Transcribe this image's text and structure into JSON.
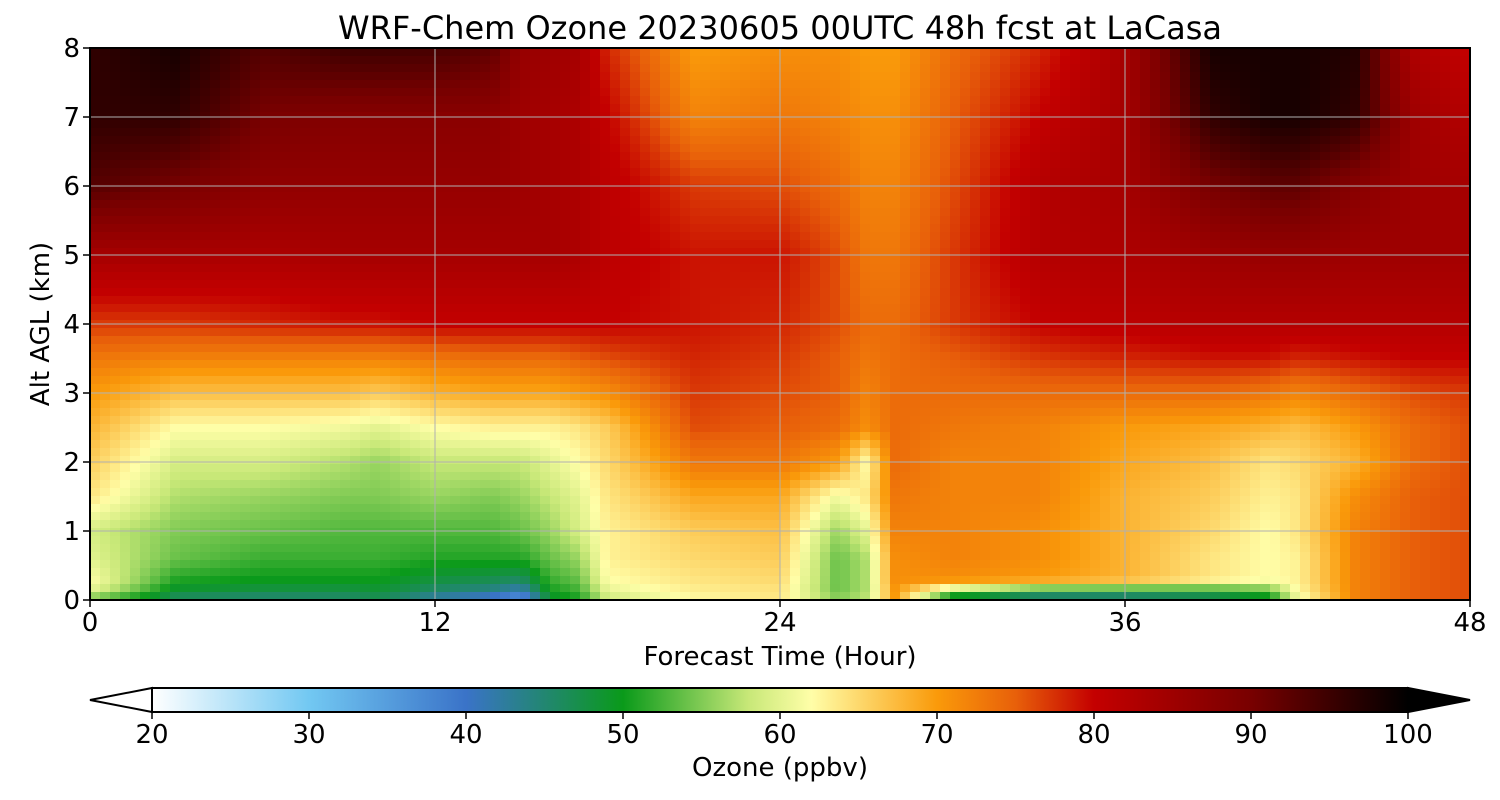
{
  "chart_data": {
    "type": "heatmap",
    "title": "WRF-Chem Ozone  20230605 00UTC 48h fcst at LaCasa",
    "xlabel": "Forecast Time (Hour)",
    "ylabel": "Alt AGL (km)",
    "xlim": [
      0,
      48
    ],
    "ylim": [
      0,
      8
    ],
    "x_ticks": [
      "0",
      "12",
      "24",
      "36",
      "48"
    ],
    "y_ticks": [
      "0",
      "1",
      "2",
      "3",
      "4",
      "5",
      "6",
      "7",
      "8"
    ],
    "grid": true,
    "colorbar": {
      "label": "Ozone  (ppbv)",
      "min": 20,
      "max": 100,
      "ticks": [
        "20",
        "30",
        "40",
        "50",
        "60",
        "70",
        "80",
        "90",
        "100"
      ],
      "extend": "both",
      "colors": [
        [
          20,
          "#ffffff"
        ],
        [
          30,
          "#72c8f2"
        ],
        [
          40,
          "#3a73c8"
        ],
        [
          50,
          "#0a9a1a"
        ],
        [
          58,
          "#c8e878"
        ],
        [
          62,
          "#fffea8"
        ],
        [
          70,
          "#fa9a0a"
        ],
        [
          75,
          "#e8600a"
        ],
        [
          80,
          "#c40000"
        ],
        [
          90,
          "#780000"
        ],
        [
          100,
          "#000000"
        ]
      ]
    },
    "x_hours": [
      0,
      3,
      6,
      9,
      10,
      12,
      14,
      15,
      16,
      17,
      18,
      21,
      24,
      26,
      27,
      28,
      30,
      33,
      36,
      39,
      41,
      42,
      44,
      46,
      48
    ],
    "altitudes_km": [
      0,
      0.1,
      0.3,
      0.6,
      1,
      1.5,
      2,
      2.5,
      3,
      3.5,
      4,
      5,
      6,
      7,
      8
    ],
    "ozone_ppbv": [
      [
        52,
        60,
        62,
        60,
        59,
        64,
        66,
        68,
        70,
        73,
        77,
        84,
        93,
        96,
        96
      ],
      [
        45,
        48,
        51,
        54,
        55,
        57,
        59,
        62,
        67,
        72,
        77,
        84,
        90,
        96,
        98
      ],
      [
        44,
        47,
        50,
        52,
        54,
        56,
        59,
        62,
        67,
        72,
        78,
        83,
        87,
        90,
        93
      ],
      [
        45,
        47,
        50,
        52,
        53,
        55,
        57,
        61,
        67,
        72,
        79,
        84,
        86,
        88,
        95
      ],
      [
        46,
        48,
        50,
        52,
        53,
        55,
        56,
        60,
        66,
        72,
        79,
        84,
        86,
        88,
        95
      ],
      [
        41,
        45,
        48,
        51,
        53,
        56,
        58,
        62,
        68,
        73,
        80,
        84,
        86,
        88,
        94
      ],
      [
        37,
        43,
        47,
        51,
        53,
        55,
        58,
        63,
        69,
        74,
        80,
        84,
        86,
        87,
        92
      ],
      [
        34,
        40,
        46,
        51,
        54,
        56,
        58,
        63,
        69,
        74,
        80,
        84,
        85,
        85,
        86
      ],
      [
        48,
        50,
        52,
        54,
        56,
        58,
        60,
        63,
        69,
        74,
        80,
        84,
        84,
        84,
        85
      ],
      [
        50,
        52,
        54,
        56,
        59,
        60,
        62,
        64,
        70,
        75,
        80,
        83,
        83,
        83,
        84
      ],
      [
        58,
        60,
        62,
        63,
        63,
        64,
        65,
        66,
        71,
        76,
        80,
        81,
        81,
        80,
        78
      ],
      [
        62,
        63,
        64,
        65,
        66,
        69,
        73,
        76,
        77,
        78,
        79,
        79,
        77,
        72,
        70
      ],
      [
        64,
        64,
        65,
        66,
        67,
        69,
        73,
        75,
        76,
        77,
        78,
        79,
        76,
        73,
        71
      ],
      [
        56,
        54,
        54,
        54,
        56,
        61,
        70,
        74,
        75,
        75,
        76,
        76,
        74,
        72,
        71
      ],
      [
        58,
        57,
        57,
        57,
        60,
        64,
        62,
        71,
        72,
        73,
        74,
        73,
        72,
        71,
        70
      ],
      [
        70,
        70,
        71,
        71,
        72,
        73,
        74,
        74,
        74,
        74,
        74,
        73,
        72,
        71,
        70
      ],
      [
        44,
        55,
        71,
        72,
        72,
        72,
        72,
        73,
        74,
        75,
        77,
        77,
        76,
        75,
        74
      ],
      [
        44,
        47,
        70,
        71,
        71,
        72,
        72,
        72,
        74,
        77,
        80,
        82,
        82,
        80,
        78
      ],
      [
        44,
        47,
        68,
        68,
        68,
        68,
        69,
        70,
        74,
        78,
        81,
        83,
        84,
        84,
        84
      ],
      [
        45,
        49,
        64,
        64,
        65,
        66,
        67,
        69,
        74,
        79,
        82,
        85,
        90,
        96,
        98
      ],
      [
        48,
        52,
        62,
        62,
        62,
        63,
        64,
        68,
        73,
        79,
        82,
        86,
        92,
        98,
        98
      ],
      [
        60,
        62,
        63,
        63,
        64,
        64,
        65,
        67,
        72,
        78,
        82,
        86,
        92,
        98,
        98
      ],
      [
        72,
        72,
        72,
        72,
        72,
        71,
        68,
        70,
        74,
        79,
        82,
        85,
        88,
        96,
        97
      ],
      [
        75,
        75,
        75,
        75,
        75,
        75,
        74,
        74,
        76,
        80,
        82,
        85,
        85,
        85,
        83
      ],
      [
        76,
        76,
        76,
        76,
        76,
        76,
        76,
        76,
        77,
        80,
        82,
        84,
        84,
        82,
        80
      ]
    ]
  }
}
